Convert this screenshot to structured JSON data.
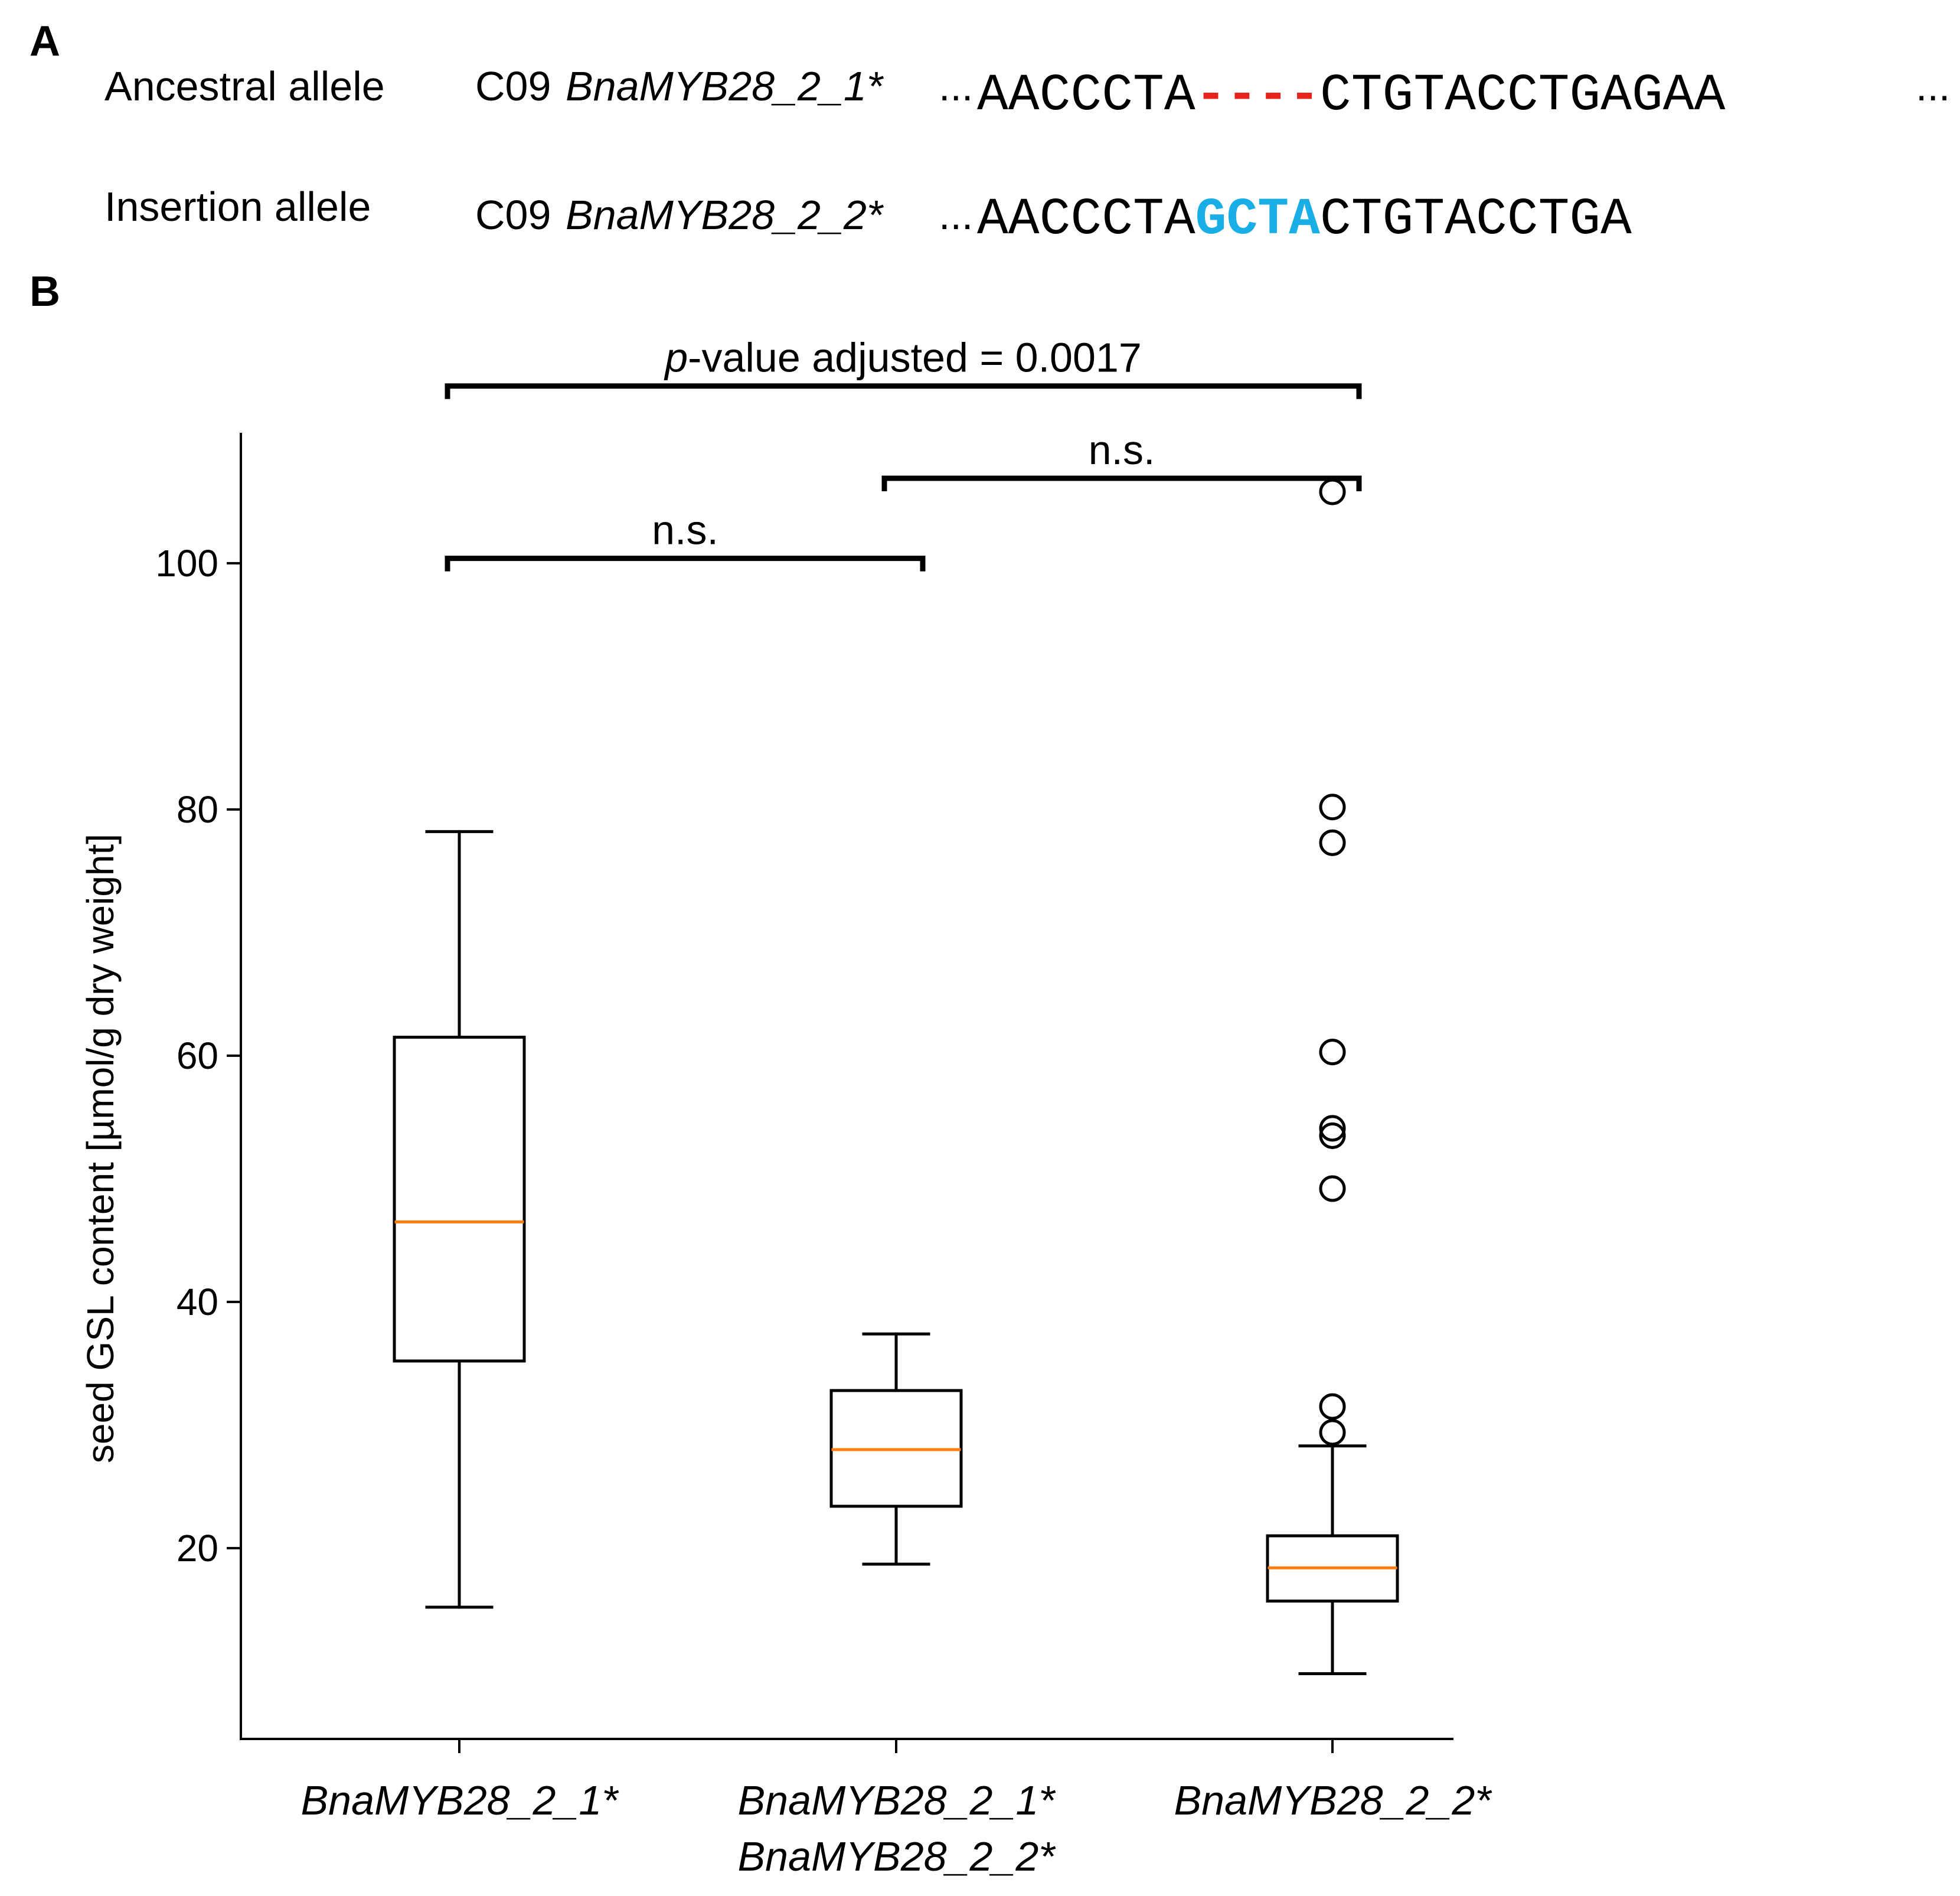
{
  "panel_a": {
    "label": "A",
    "rows": [
      {
        "allele": "Ancestral allele",
        "chrom": "C09",
        "gene": "BnaMYB28_2_1*",
        "seq_prefix": "...",
        "seq_left": "AACCCTA",
        "seq_mid": "----",
        "seq_right": "CTGTACCTGAGAA",
        "seq_suffix": "...",
        "mid_color": "#e8231e"
      },
      {
        "allele": "Insertion allele",
        "chrom": "C09",
        "gene": "BnaMYB28_2_2*",
        "seq_prefix": "...",
        "seq_left": "AACCCTA",
        "seq_mid": "GCTA",
        "seq_right": "CTGTACCTGA",
        "seq_suffix": "",
        "mid_color": "#1aaee6"
      }
    ]
  },
  "panel_b": {
    "label": "B"
  },
  "chart_data": {
    "type": "box",
    "ylabel": "seed GSL content [µmol/g dry weight]",
    "ylim": [
      4.5,
      110.5
    ],
    "yticks": [
      20,
      40,
      60,
      80,
      100
    ],
    "categories": [
      {
        "line1": "BnaMYB28_2_1*",
        "line2": ""
      },
      {
        "line1": "BnaMYB28_2_1*",
        "line2": "BnaMYB28_2_2*"
      },
      {
        "line1": "BnaMYB28_2_2*",
        "line2": ""
      }
    ],
    "boxes": [
      {
        "whislo": 15.2,
        "q1": 35.2,
        "med": 46.5,
        "q3": 61.5,
        "whishi": 78.2,
        "fliers": []
      },
      {
        "whislo": 18.7,
        "q1": 23.4,
        "med": 28.0,
        "q3": 32.8,
        "whishi": 37.4,
        "fliers": []
      },
      {
        "whislo": 9.8,
        "q1": 15.7,
        "med": 18.4,
        "q3": 21.0,
        "whishi": 28.3,
        "fliers": [
          29.4,
          31.5,
          49.2,
          53.5,
          54.1,
          60.3,
          77.3,
          80.2,
          105.8
        ]
      }
    ],
    "median_color": "#ff7f0e",
    "comparisons": [
      {
        "from": 0,
        "to": 2,
        "label_prefix": "p",
        "label_rest": "-value adjusted = 0.0017",
        "y": 114.4
      },
      {
        "from": 1,
        "to": 2,
        "label_prefix": "",
        "label_rest": "n.s.",
        "y": 106.9
      },
      {
        "from": 0,
        "to": 1,
        "label_prefix": "",
        "label_rest": "n.s.",
        "y": 100.4
      }
    ]
  }
}
